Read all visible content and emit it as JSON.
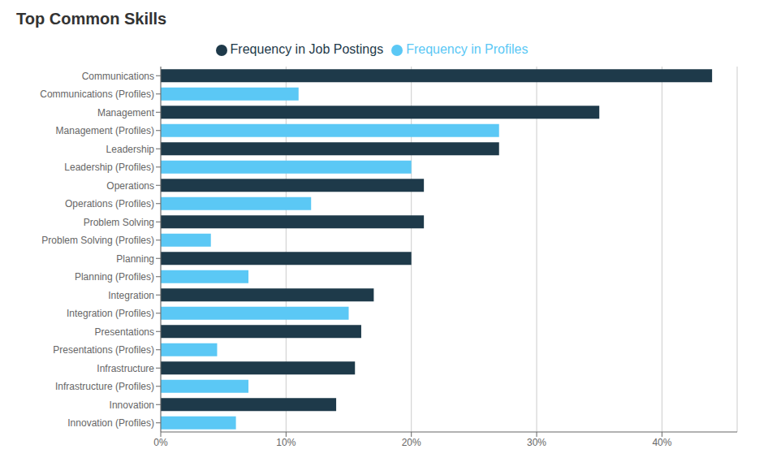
{
  "chart_data": {
    "type": "bar",
    "title": "Top Common Skills",
    "orientation": "horizontal",
    "grid": true,
    "legend": "top",
    "categories": [
      "Communications",
      "Communications (Profiles)",
      "Management",
      "Management (Profiles)",
      "Leadership",
      "Leadership (Profiles)",
      "Operations",
      "Operations (Profiles)",
      "Problem Solving",
      "Problem Solving (Profiles)",
      "Planning",
      "Planning (Profiles)",
      "Integration",
      "Integration (Profiles)",
      "Presentations",
      "Presentations (Profiles)",
      "Infrastructure",
      "Infrastructure (Profiles)",
      "Innovation",
      "Innovation (Profiles)"
    ],
    "series": [
      {
        "name": "Frequency in Job Postings",
        "color": "#1e3a4a",
        "values": [
          44,
          null,
          35,
          null,
          27,
          null,
          21,
          null,
          21,
          null,
          20,
          null,
          17,
          null,
          16,
          null,
          15.5,
          null,
          14,
          null
        ]
      },
      {
        "name": "Frequency in Profiles",
        "color": "#5bc8f5",
        "values": [
          null,
          11,
          null,
          27,
          null,
          20,
          null,
          12,
          null,
          4,
          null,
          7,
          null,
          15,
          null,
          4.5,
          null,
          7,
          null,
          6
        ]
      }
    ],
    "xlim": [
      0,
      46
    ],
    "xticks": [
      {
        "value": 0,
        "label": "0%"
      },
      {
        "value": 10,
        "label": "10%"
      },
      {
        "value": 20,
        "label": "20%"
      },
      {
        "value": 30,
        "label": "30%"
      },
      {
        "value": 40,
        "label": "40%"
      }
    ]
  }
}
